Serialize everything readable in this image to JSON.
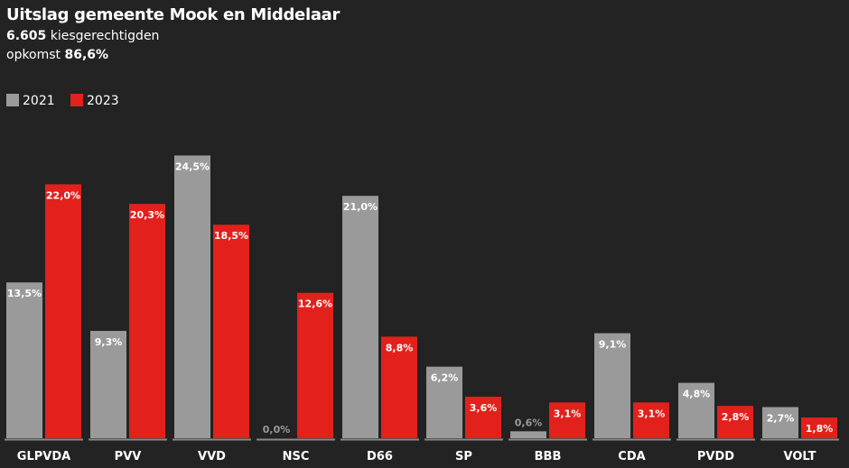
{
  "chart_data": {
    "type": "bar",
    "title": "Uitslag gemeente Mook en Middelaar",
    "subtitle": {
      "value": "6.605",
      "text": "kiesgerechtigden"
    },
    "turnout": {
      "text": "opkomst",
      "value": "86,6%"
    },
    "categories": [
      "GLPVDA",
      "PVV",
      "VVD",
      "NSC",
      "D66",
      "SP",
      "BBB",
      "CDA",
      "PVDD",
      "VOLT"
    ],
    "series": [
      {
        "name": "2021",
        "color": "#9a9a9a",
        "values": [
          13.5,
          9.3,
          24.5,
          0.0,
          21.0,
          6.2,
          0.6,
          9.1,
          4.8,
          2.7
        ],
        "value_labels": [
          "13,5%",
          "9,3%",
          "24,5%",
          "0,0%",
          "21,0%",
          "6,2%",
          "0,6%",
          "9,1%",
          "4,8%",
          "2,7%"
        ]
      },
      {
        "name": "2023",
        "color": "#e2211c",
        "values": [
          22.0,
          20.3,
          18.5,
          12.6,
          8.8,
          3.6,
          3.1,
          3.1,
          2.8,
          1.8
        ],
        "value_labels": [
          "22,0%",
          "20,3%",
          "18,5%",
          "12,6%",
          "8,8%",
          "3,6%",
          "3,1%",
          "3,1%",
          "2,8%",
          "1,8%"
        ]
      }
    ],
    "ylim": [
      0,
      25
    ]
  }
}
